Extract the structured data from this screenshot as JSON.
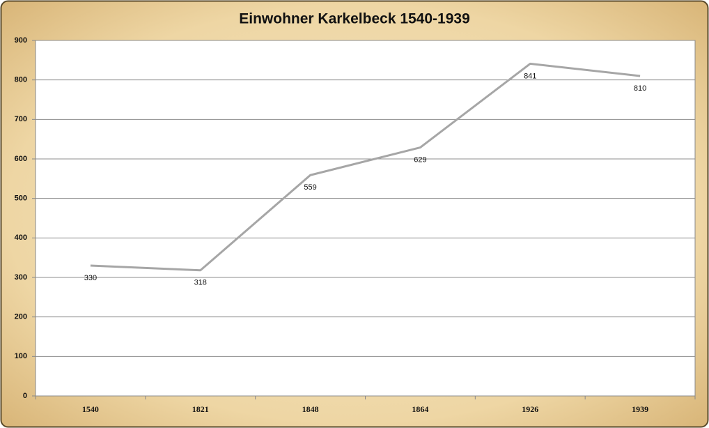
{
  "chart_data": {
    "type": "line",
    "title": "Einwohner Karkelbeck 1540-1939",
    "categories": [
      "1540",
      "1821",
      "1848",
      "1864",
      "1926",
      "1939"
    ],
    "values": [
      330,
      318,
      559,
      629,
      841,
      810
    ],
    "color": "#a6a6a6",
    "ylim": [
      0,
      900
    ],
    "yticks": [
      0,
      100,
      200,
      300,
      400,
      500,
      600,
      700,
      800,
      900
    ],
    "grid": true
  }
}
